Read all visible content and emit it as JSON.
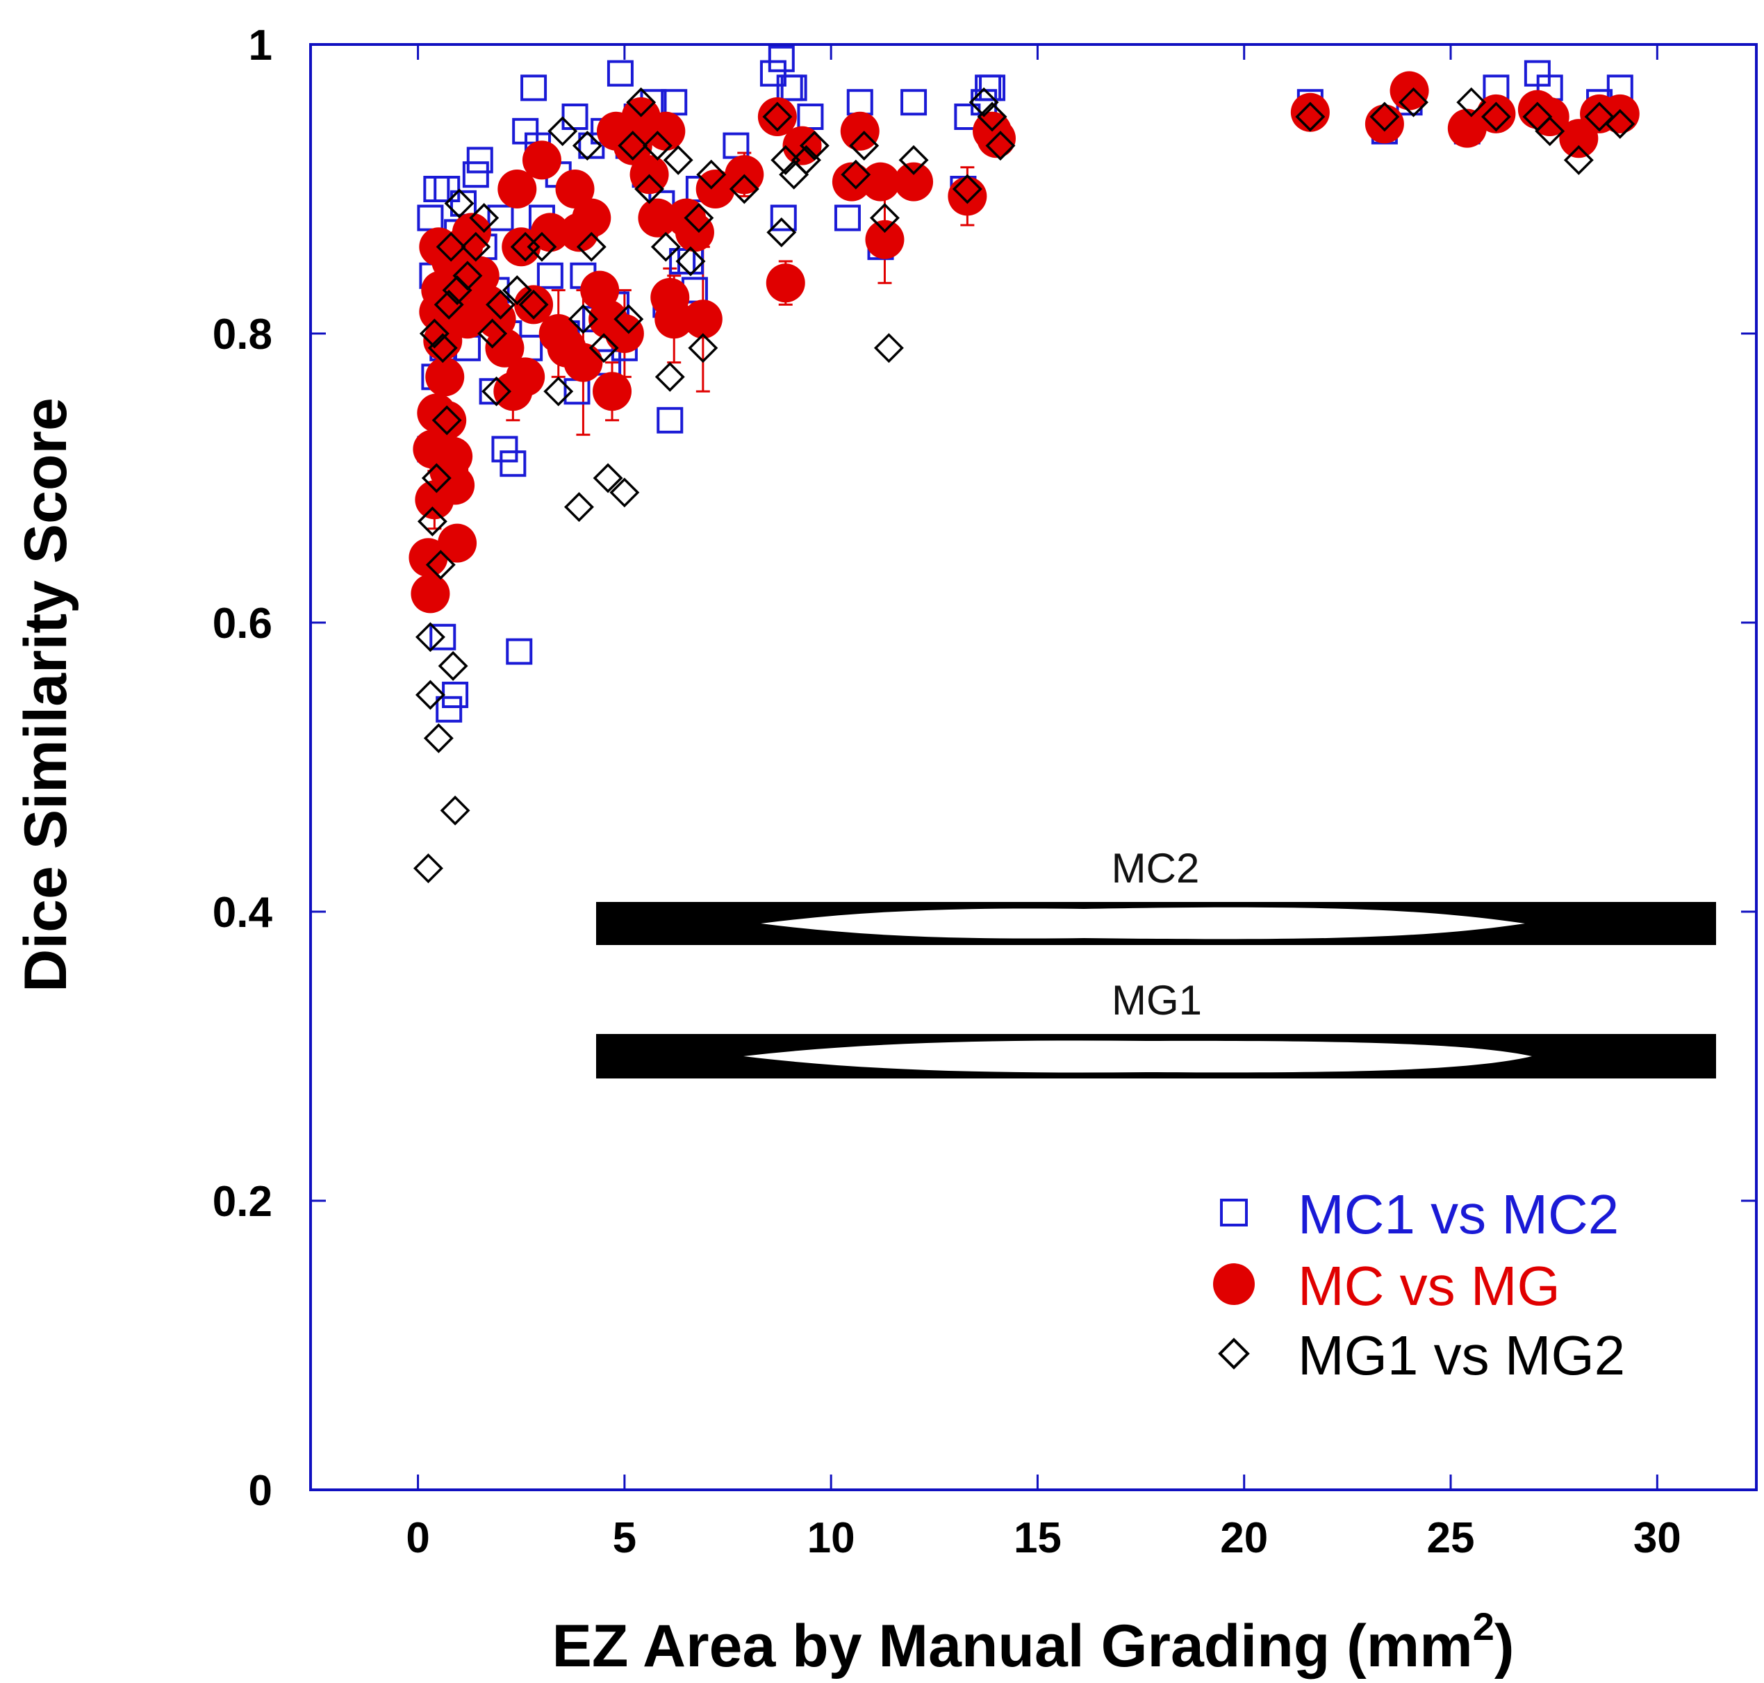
{
  "chart_data": {
    "type": "scatter",
    "title": "",
    "xlabel": "EZ Area by Manual Grading (mm",
    "xlabel_superscript": "2",
    "xlabel_suffix": ")",
    "ylabel": "Dice Similarity Score",
    "xlim": [
      -2.6,
      32.4
    ],
    "ylim": [
      0,
      1
    ],
    "xticks": [
      0,
      5,
      10,
      15,
      20,
      25,
      30
    ],
    "xtick_labels": [
      "0",
      "5",
      "10",
      "15",
      "20",
      "25",
      "30"
    ],
    "yticks": [
      0,
      0.2,
      0.4,
      0.6,
      0.8,
      1
    ],
    "ytick_labels": [
      "0",
      "0.2",
      "0.4",
      "0.6",
      "0.8",
      "1"
    ],
    "grid": false,
    "legend_position": "bottom-right",
    "colors": {
      "axis": "#1010c0",
      "mc1_mc2": "#1a1ad6",
      "mc_mg": "#e00000",
      "mg1_mg2": "#000000",
      "errorbar": "#e00000"
    },
    "series": [
      {
        "name": "MC1 vs MC2",
        "marker": "open-square",
        "points": [
          [
            0.3,
            0.72
          ],
          [
            0.3,
            0.88
          ],
          [
            0.35,
            0.84
          ],
          [
            0.4,
            0.77
          ],
          [
            0.45,
            0.9
          ],
          [
            0.5,
            0.86
          ],
          [
            0.55,
            0.83
          ],
          [
            0.6,
            0.79
          ],
          [
            0.6,
            0.59
          ],
          [
            0.7,
            0.9
          ],
          [
            0.75,
            0.54
          ],
          [
            0.8,
            0.85
          ],
          [
            0.85,
            0.81
          ],
          [
            0.9,
            0.55
          ],
          [
            0.95,
            0.87
          ],
          [
            1.0,
            0.83
          ],
          [
            1.1,
            0.89
          ],
          [
            1.2,
            0.79
          ],
          [
            1.3,
            0.87
          ],
          [
            1.4,
            0.91
          ],
          [
            1.5,
            0.92
          ],
          [
            1.6,
            0.86
          ],
          [
            1.7,
            0.82
          ],
          [
            1.8,
            0.76
          ],
          [
            1.9,
            0.83
          ],
          [
            2.0,
            0.88
          ],
          [
            2.1,
            0.72
          ],
          [
            2.2,
            0.8
          ],
          [
            2.3,
            0.71
          ],
          [
            2.4,
            0.9
          ],
          [
            2.45,
            0.58
          ],
          [
            2.5,
            0.86
          ],
          [
            2.6,
            0.94
          ],
          [
            2.7,
            0.79
          ],
          [
            2.8,
            0.97
          ],
          [
            2.9,
            0.93
          ],
          [
            3.0,
            0.88
          ],
          [
            3.2,
            0.84
          ],
          [
            3.4,
            0.91
          ],
          [
            3.6,
            0.8
          ],
          [
            3.8,
            0.95
          ],
          [
            3.85,
            0.76
          ],
          [
            4.0,
            0.84
          ],
          [
            4.2,
            0.93
          ],
          [
            4.3,
            0.81
          ],
          [
            4.5,
            0.94
          ],
          [
            4.6,
            0.78
          ],
          [
            4.8,
            0.82
          ],
          [
            4.9,
            0.98
          ],
          [
            5.0,
            0.79
          ],
          [
            5.1,
            0.93
          ],
          [
            5.3,
            0.95
          ],
          [
            5.5,
            0.91
          ],
          [
            5.7,
            0.96
          ],
          [
            5.9,
            0.89
          ],
          [
            6.0,
            0.82
          ],
          [
            6.1,
            0.74
          ],
          [
            6.2,
            0.96
          ],
          [
            6.4,
            0.85
          ],
          [
            6.6,
            0.85
          ],
          [
            6.7,
            0.83
          ],
          [
            6.8,
            0.9
          ],
          [
            7.7,
            0.93
          ],
          [
            8.6,
            0.98
          ],
          [
            8.8,
            0.99
          ],
          [
            8.85,
            0.88
          ],
          [
            9.0,
            0.97
          ],
          [
            9.1,
            0.97
          ],
          [
            9.5,
            0.95
          ],
          [
            10.4,
            0.88
          ],
          [
            10.7,
            0.96
          ],
          [
            11.2,
            0.86
          ],
          [
            12.0,
            0.96
          ],
          [
            13.2,
            0.9
          ],
          [
            13.3,
            0.95
          ],
          [
            13.7,
            0.96
          ],
          [
            13.8,
            0.97
          ],
          [
            13.9,
            0.97
          ],
          [
            21.6,
            0.96
          ],
          [
            23.4,
            0.94
          ],
          [
            24.0,
            0.96
          ],
          [
            25.4,
            0.94
          ],
          [
            26.1,
            0.97
          ],
          [
            27.1,
            0.98
          ],
          [
            27.4,
            0.97
          ],
          [
            28.6,
            0.96
          ],
          [
            29.1,
            0.97
          ]
        ]
      },
      {
        "name": "MC vs MG",
        "marker": "filled-circle",
        "points": [
          [
            0.25,
            0.645,
            0.0
          ],
          [
            0.3,
            0.62,
            0.0
          ],
          [
            0.35,
            0.72,
            0.0
          ],
          [
            0.4,
            0.685,
            0.02
          ],
          [
            0.45,
            0.745,
            0.0
          ],
          [
            0.5,
            0.815,
            0.0
          ],
          [
            0.5,
            0.86,
            0.0
          ],
          [
            0.55,
            0.83,
            0.0
          ],
          [
            0.6,
            0.795,
            0.0
          ],
          [
            0.65,
            0.77,
            0.0
          ],
          [
            0.7,
            0.74,
            0.0
          ],
          [
            0.75,
            0.705,
            0.0
          ],
          [
            0.8,
            0.85,
            0.0
          ],
          [
            0.85,
            0.715,
            0.0
          ],
          [
            0.9,
            0.695,
            0.0
          ],
          [
            0.95,
            0.655,
            0.0
          ],
          [
            1.0,
            0.835,
            0.0
          ],
          [
            1.1,
            0.86,
            0.0
          ],
          [
            1.2,
            0.81,
            0.0
          ],
          [
            1.3,
            0.87,
            0.0
          ],
          [
            1.5,
            0.84,
            0.0
          ],
          [
            1.7,
            0.82,
            0.0
          ],
          [
            1.9,
            0.81,
            0.0
          ],
          [
            2.1,
            0.79,
            0.0
          ],
          [
            2.3,
            0.76,
            0.02
          ],
          [
            2.4,
            0.9,
            0.0
          ],
          [
            2.5,
            0.86,
            0.0
          ],
          [
            2.6,
            0.77,
            0.0
          ],
          [
            2.8,
            0.82,
            0.0
          ],
          [
            3.0,
            0.92,
            0.0
          ],
          [
            3.2,
            0.87,
            0.0
          ],
          [
            3.4,
            0.8,
            0.03
          ],
          [
            3.6,
            0.79,
            0.0
          ],
          [
            3.8,
            0.9,
            0.0
          ],
          [
            3.9,
            0.87,
            0.0
          ],
          [
            4.0,
            0.78,
            0.05
          ],
          [
            4.2,
            0.88,
            0.0
          ],
          [
            4.4,
            0.83,
            0.0
          ],
          [
            4.6,
            0.81,
            0.0
          ],
          [
            4.7,
            0.76,
            0.02
          ],
          [
            4.8,
            0.94,
            0.0
          ],
          [
            5.0,
            0.8,
            0.03
          ],
          [
            5.2,
            0.93,
            0.0
          ],
          [
            5.4,
            0.95,
            0.0
          ],
          [
            5.6,
            0.91,
            0.0
          ],
          [
            5.8,
            0.88,
            0.0
          ],
          [
            6.0,
            0.94,
            0.0
          ],
          [
            6.1,
            0.825,
            0.02
          ],
          [
            6.2,
            0.81,
            0.03
          ],
          [
            6.5,
            0.88,
            0.0
          ],
          [
            6.7,
            0.87,
            0.0
          ],
          [
            6.9,
            0.81,
            0.05
          ],
          [
            7.2,
            0.9,
            0.0
          ],
          [
            7.9,
            0.91,
            0.015
          ],
          [
            8.7,
            0.95,
            0.0
          ],
          [
            8.9,
            0.835,
            0.015
          ],
          [
            9.3,
            0.93,
            0.0
          ],
          [
            10.5,
            0.905,
            0.0
          ],
          [
            10.7,
            0.94,
            0.0
          ],
          [
            11.2,
            0.905,
            0.0
          ],
          [
            11.3,
            0.865,
            0.03
          ],
          [
            12.0,
            0.905,
            0.0
          ],
          [
            13.3,
            0.895,
            0.02
          ],
          [
            13.9,
            0.94,
            0.0
          ],
          [
            14.0,
            0.935,
            0.0
          ],
          [
            21.6,
            0.953,
            0.0
          ],
          [
            23.4,
            0.945,
            0.0
          ],
          [
            24.0,
            0.968,
            0.0
          ],
          [
            25.4,
            0.942,
            0.0
          ],
          [
            26.1,
            0.952,
            0.0
          ],
          [
            27.1,
            0.955,
            0.0
          ],
          [
            27.4,
            0.95,
            0.0
          ],
          [
            28.1,
            0.935,
            0.0
          ],
          [
            28.6,
            0.952,
            0.0
          ],
          [
            29.1,
            0.952,
            0.0
          ]
        ]
      },
      {
        "name": "MG1 vs MG2",
        "marker": "open-diamond",
        "points": [
          [
            0.25,
            0.43
          ],
          [
            0.3,
            0.59
          ],
          [
            0.3,
            0.55
          ],
          [
            0.35,
            0.67
          ],
          [
            0.4,
            0.8
          ],
          [
            0.45,
            0.7
          ],
          [
            0.5,
            0.52
          ],
          [
            0.55,
            0.64
          ],
          [
            0.6,
            0.79
          ],
          [
            0.7,
            0.74
          ],
          [
            0.75,
            0.82
          ],
          [
            0.8,
            0.86
          ],
          [
            0.85,
            0.57
          ],
          [
            0.9,
            0.47
          ],
          [
            0.95,
            0.83
          ],
          [
            1.0,
            0.89
          ],
          [
            1.2,
            0.84
          ],
          [
            1.4,
            0.86
          ],
          [
            1.6,
            0.88
          ],
          [
            1.8,
            0.8
          ],
          [
            1.9,
            0.76
          ],
          [
            2.0,
            0.82
          ],
          [
            2.4,
            0.83
          ],
          [
            2.6,
            0.86
          ],
          [
            2.8,
            0.82
          ],
          [
            3.0,
            0.86
          ],
          [
            3.4,
            0.76
          ],
          [
            3.5,
            0.94
          ],
          [
            3.9,
            0.68
          ],
          [
            4.0,
            0.81
          ],
          [
            4.1,
            0.93
          ],
          [
            4.2,
            0.86
          ],
          [
            4.5,
            0.79
          ],
          [
            4.6,
            0.7
          ],
          [
            5.0,
            0.69
          ],
          [
            5.1,
            0.81
          ],
          [
            5.2,
            0.93
          ],
          [
            5.4,
            0.96
          ],
          [
            5.6,
            0.9
          ],
          [
            5.8,
            0.93
          ],
          [
            6.0,
            0.86
          ],
          [
            6.1,
            0.77
          ],
          [
            6.3,
            0.92
          ],
          [
            6.6,
            0.85
          ],
          [
            6.8,
            0.88
          ],
          [
            6.9,
            0.79
          ],
          [
            7.1,
            0.91
          ],
          [
            7.9,
            0.9
          ],
          [
            8.7,
            0.95
          ],
          [
            8.8,
            0.87
          ],
          [
            8.9,
            0.92
          ],
          [
            9.1,
            0.91
          ],
          [
            9.4,
            0.92
          ],
          [
            9.6,
            0.93
          ],
          [
            10.6,
            0.91
          ],
          [
            10.8,
            0.93
          ],
          [
            11.3,
            0.88
          ],
          [
            11.4,
            0.79
          ],
          [
            12.0,
            0.92
          ],
          [
            13.3,
            0.9
          ],
          [
            13.7,
            0.96
          ],
          [
            13.9,
            0.95
          ],
          [
            14.1,
            0.93
          ],
          [
            21.6,
            0.95
          ],
          [
            23.4,
            0.95
          ],
          [
            24.1,
            0.96
          ],
          [
            25.5,
            0.96
          ],
          [
            26.1,
            0.95
          ],
          [
            27.1,
            0.95
          ],
          [
            27.4,
            0.94
          ],
          [
            28.1,
            0.92
          ],
          [
            28.6,
            0.95
          ],
          [
            29.1,
            0.945
          ]
        ]
      }
    ],
    "inset_labels": [
      "MC2",
      "MG1"
    ],
    "legend": [
      "MC1 vs MC2",
      "MC vs MG",
      "MG1 vs MG2"
    ]
  }
}
